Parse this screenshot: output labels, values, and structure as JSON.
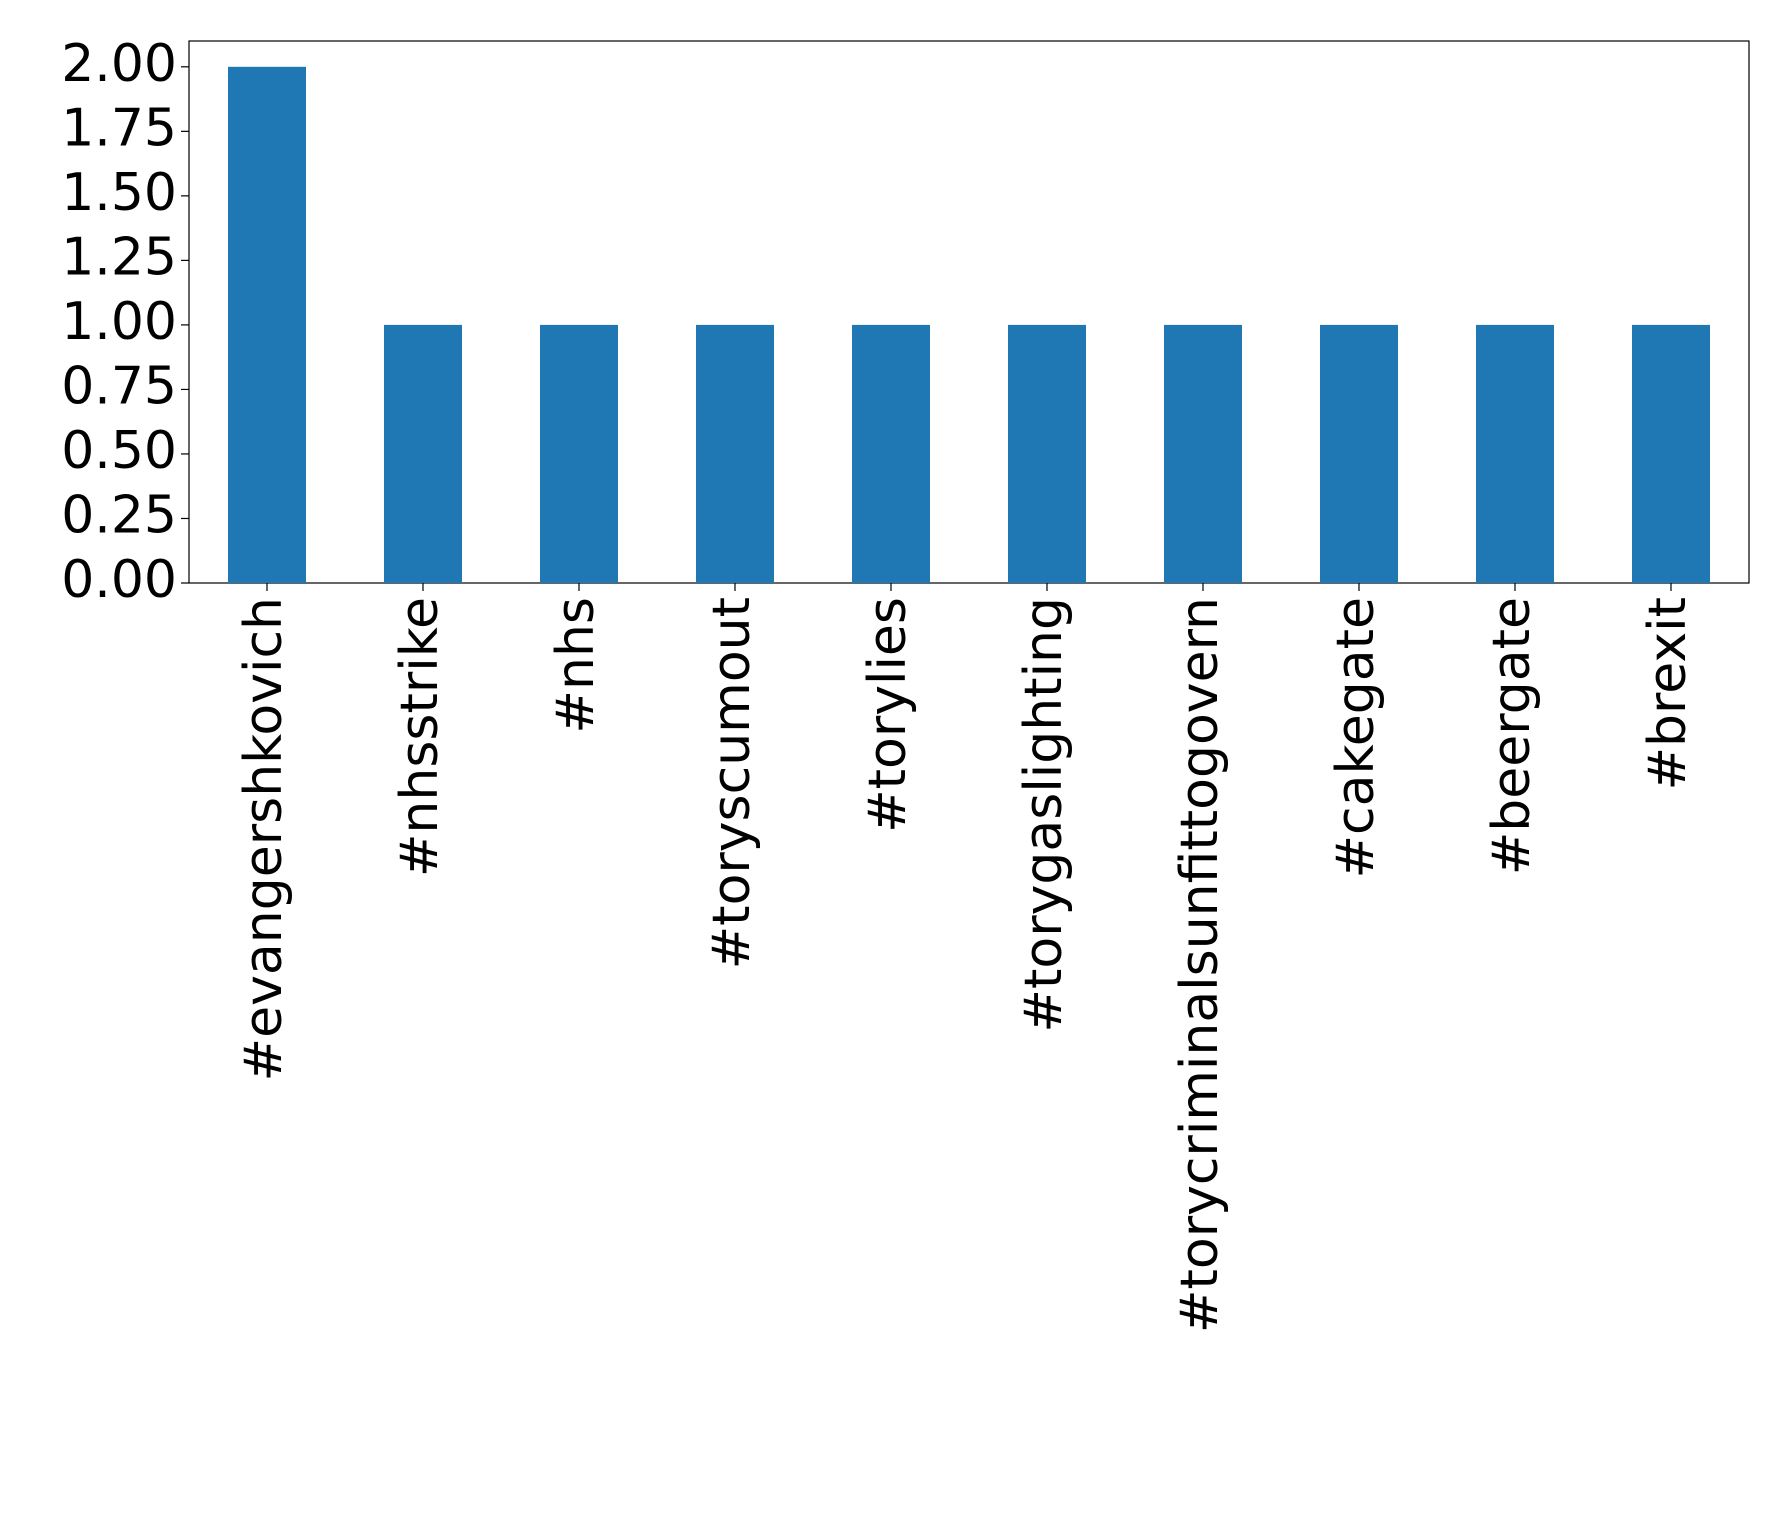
{
  "chart_data": {
    "type": "bar",
    "categories": [
      "#evangershkovich",
      "#nhsstrike",
      "#nhs",
      "#toryscumout",
      "#torylies",
      "#torygaslighting",
      "#torycriminalsunfittogovern",
      "#cakegate",
      "#beergate",
      "#brexit"
    ],
    "values": [
      2,
      1,
      1,
      1,
      1,
      1,
      1,
      1,
      1,
      1
    ],
    "color": "#1f77b4",
    "ylim": [
      0,
      2.1
    ],
    "yticks": [
      {
        "value": 0,
        "label": "0.00"
      },
      {
        "value": 0.25,
        "label": "0.25"
      },
      {
        "value": 0.5,
        "label": "0.50"
      },
      {
        "value": 0.75,
        "label": "0.75"
      },
      {
        "value": 1,
        "label": "1.00"
      },
      {
        "value": 1.25,
        "label": "1.25"
      },
      {
        "value": 1.5,
        "label": "1.50"
      },
      {
        "value": 1.75,
        "label": "1.75"
      },
      {
        "value": 2,
        "label": "2.00"
      }
    ],
    "grid": false
  }
}
